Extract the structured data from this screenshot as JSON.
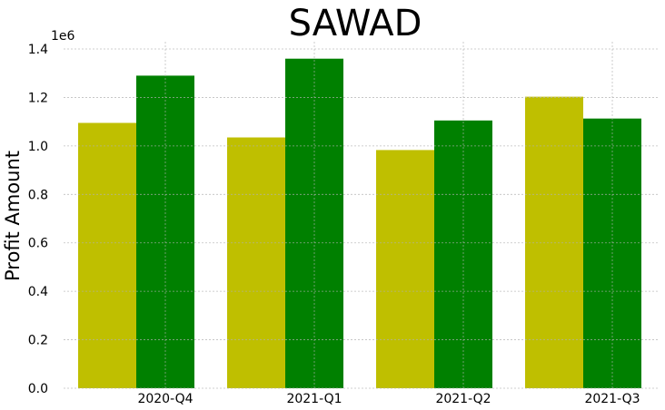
{
  "chart_data": {
    "type": "bar",
    "title": "SAWAD",
    "xlabel": "",
    "ylabel": "Profit Amount",
    "y_offset_label": "1e6",
    "ylim": [
      0,
      1.43
    ],
    "y_ticks": [
      0.0,
      0.2,
      0.4,
      0.6,
      0.8,
      1.0,
      1.2,
      1.4
    ],
    "y_tick_labels": [
      "0.0",
      "0.2",
      "0.4",
      "0.6",
      "0.8",
      "1.0",
      "1.2",
      "1.4"
    ],
    "categories": [
      "2020-Q4",
      "2021-Q1",
      "2021-Q2",
      "2021-Q3"
    ],
    "grid": true,
    "series": [
      {
        "color": "#bfbf00",
        "values": [
          1.095,
          1.035,
          0.983,
          1.203
        ]
      },
      {
        "color": "#008000",
        "values": [
          1.29,
          1.36,
          1.105,
          1.113
        ]
      }
    ]
  }
}
